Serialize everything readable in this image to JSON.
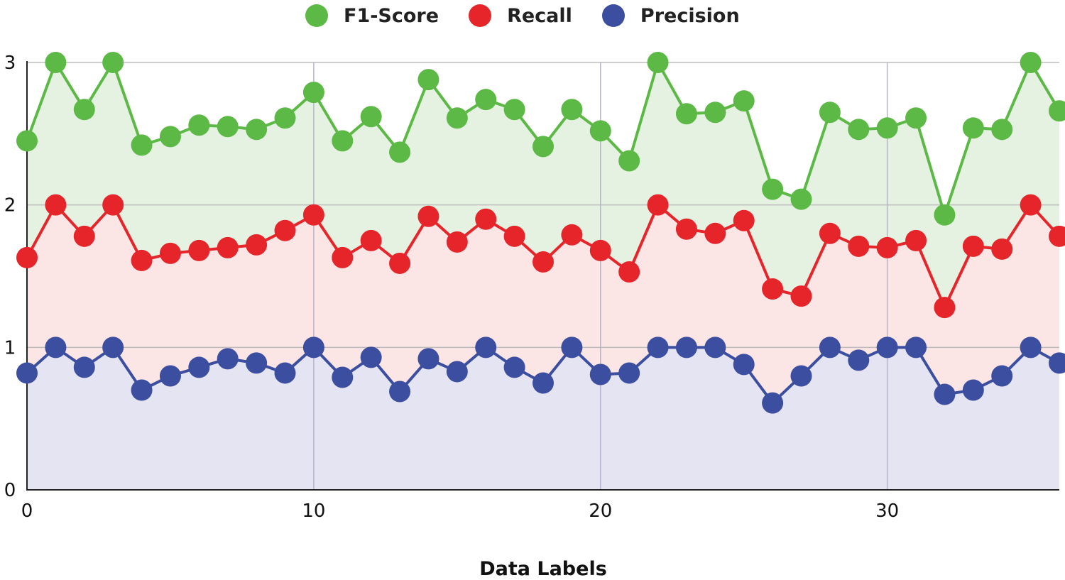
{
  "chart_data": {
    "type": "area",
    "xlabel": "Data Labels",
    "ylabel": "",
    "xlim": [
      0,
      36
    ],
    "ylim": [
      0,
      3
    ],
    "x_ticks": [
      0,
      10,
      20,
      30
    ],
    "y_ticks": [
      0,
      1,
      2,
      3
    ],
    "grid": true,
    "legend_position": "top-center",
    "x": [
      0,
      1,
      2,
      3,
      4,
      5,
      6,
      7,
      8,
      9,
      10,
      11,
      12,
      13,
      14,
      15,
      16,
      17,
      18,
      19,
      20,
      21,
      22,
      23,
      24,
      25,
      26,
      27,
      28,
      29,
      30,
      31,
      32,
      33,
      34,
      35,
      36
    ],
    "series": [
      {
        "name": "F1-Score",
        "color": "#5cb946",
        "fill": "#e5f2e1",
        "values": [
          2.45,
          3.0,
          2.67,
          3.0,
          2.42,
          2.48,
          2.56,
          2.55,
          2.53,
          2.61,
          2.79,
          2.45,
          2.62,
          2.37,
          2.88,
          2.61,
          2.74,
          2.67,
          2.41,
          2.67,
          2.52,
          2.31,
          3.0,
          2.64,
          2.65,
          2.73,
          2.11,
          2.04,
          2.65,
          2.53,
          2.54,
          2.61,
          1.93,
          2.54,
          2.53,
          3.0,
          2.66
        ]
      },
      {
        "name": "Recall",
        "color": "#e6252b",
        "fill": "#fbe5e5",
        "values": [
          1.63,
          2.0,
          1.78,
          2.0,
          1.61,
          1.66,
          1.68,
          1.7,
          1.72,
          1.82,
          1.93,
          1.63,
          1.75,
          1.59,
          1.92,
          1.74,
          1.9,
          1.78,
          1.6,
          1.79,
          1.68,
          1.53,
          2.0,
          1.83,
          1.8,
          1.89,
          1.41,
          1.36,
          1.8,
          1.71,
          1.7,
          1.75,
          1.28,
          1.71,
          1.69,
          2.0,
          1.78
        ]
      },
      {
        "name": "Precision",
        "color": "#3b4ea0",
        "fill": "#e5e4f2",
        "values": [
          0.82,
          1.0,
          0.86,
          1.0,
          0.7,
          0.8,
          0.86,
          0.92,
          0.89,
          0.82,
          1.0,
          0.79,
          0.93,
          0.69,
          0.92,
          0.83,
          1.0,
          0.86,
          0.75,
          1.0,
          0.81,
          0.82,
          1.0,
          1.0,
          1.0,
          0.88,
          0.61,
          0.8,
          1.0,
          0.91,
          1.0,
          1.0,
          0.67,
          0.7,
          0.8,
          1.0,
          0.89
        ]
      }
    ]
  }
}
